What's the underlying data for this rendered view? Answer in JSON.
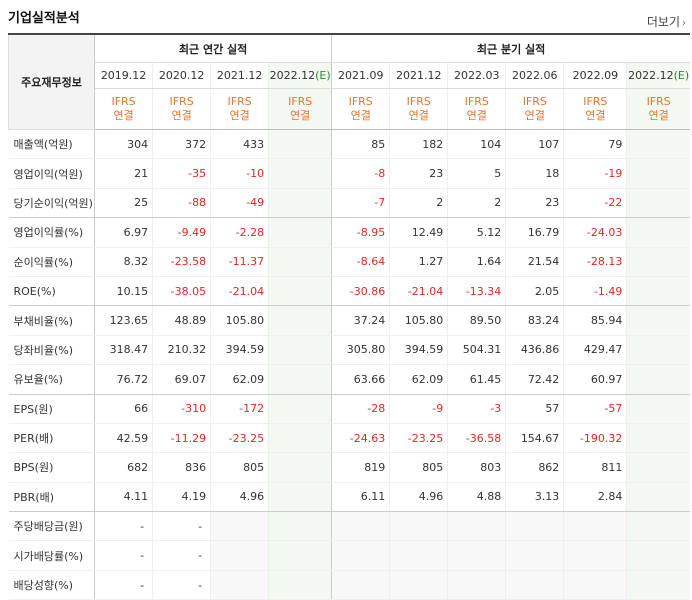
{
  "title": "기업실적분석",
  "more_label": "더보기",
  "header": {
    "corner_label": "주요재무정보",
    "annual_group": "최근 연간 실적",
    "quarter_group": "최근 분기 실적",
    "periods": [
      "2019.12",
      "2020.12",
      "2021.12",
      "2022.12(E)",
      "2021.09",
      "2021.12",
      "2022.03",
      "2022.06",
      "2022.09",
      "2022.12(E)"
    ],
    "basis_line1": "IFRS",
    "basis_line2": "연결"
  },
  "rows": [
    {
      "label": "매출액(억원)",
      "values": [
        "304",
        "372",
        "433",
        "",
        "85",
        "182",
        "104",
        "107",
        "79",
        ""
      ]
    },
    {
      "label": "영업이익(억원)",
      "values": [
        "21",
        "-35",
        "-10",
        "",
        "-8",
        "23",
        "5",
        "18",
        "-19",
        ""
      ]
    },
    {
      "label": "당기순이익(억원)",
      "values": [
        "25",
        "-88",
        "-49",
        "",
        "-7",
        "2",
        "2",
        "23",
        "-22",
        ""
      ]
    },
    {
      "label": "영업이익률(%)",
      "values": [
        "6.97",
        "-9.49",
        "-2.28",
        "",
        "-8.95",
        "12.49",
        "5.12",
        "16.79",
        "-24.03",
        ""
      ]
    },
    {
      "label": "순이익률(%)",
      "values": [
        "8.32",
        "-23.58",
        "-11.37",
        "",
        "-8.64",
        "1.27",
        "1.64",
        "21.54",
        "-28.13",
        ""
      ]
    },
    {
      "label": "ROE(%)",
      "values": [
        "10.15",
        "-38.05",
        "-21.04",
        "",
        "-30.86",
        "-21.04",
        "-13.34",
        "2.05",
        "-1.49",
        ""
      ]
    },
    {
      "label": "부채비율(%)",
      "values": [
        "123.65",
        "48.89",
        "105.80",
        "",
        "37.24",
        "105.80",
        "89.50",
        "83.24",
        "85.94",
        ""
      ]
    },
    {
      "label": "당좌비율(%)",
      "values": [
        "318.47",
        "210.32",
        "394.59",
        "",
        "305.80",
        "394.59",
        "504.31",
        "436.86",
        "429.47",
        ""
      ]
    },
    {
      "label": "유보율(%)",
      "values": [
        "76.72",
        "69.07",
        "62.09",
        "",
        "63.66",
        "62.09",
        "61.45",
        "72.42",
        "60.97",
        ""
      ]
    },
    {
      "label": "EPS(원)",
      "values": [
        "66",
        "-310",
        "-172",
        "",
        "-28",
        "-9",
        "-3",
        "57",
        "-57",
        ""
      ]
    },
    {
      "label": "PER(배)",
      "values": [
        "42.59",
        "-11.29",
        "-23.25",
        "",
        "-24.63",
        "-23.25",
        "-36.58",
        "154.67",
        "-190.32",
        ""
      ]
    },
    {
      "label": "BPS(원)",
      "values": [
        "682",
        "836",
        "805",
        "",
        "819",
        "805",
        "803",
        "862",
        "811",
        ""
      ]
    },
    {
      "label": "PBR(배)",
      "values": [
        "4.11",
        "4.19",
        "4.96",
        "",
        "6.11",
        "4.96",
        "4.88",
        "3.13",
        "2.84",
        ""
      ]
    },
    {
      "label": "주당배당금(원)",
      "values": [
        "-",
        "-",
        "",
        "",
        "",
        "",
        "",
        "",
        "",
        ""
      ]
    },
    {
      "label": "시가배당률(%)",
      "values": [
        "-",
        "-",
        "",
        "",
        "",
        "",
        "",
        "",
        "",
        ""
      ]
    },
    {
      "label": "배당성향(%)",
      "values": [
        "-",
        "-",
        "",
        "",
        "",
        "",
        "",
        "",
        "",
        ""
      ]
    }
  ],
  "colors": {
    "negative": "#e0281f",
    "basis": "#e0732d",
    "estimate": "#2f8a2f",
    "future_bg": "#f3f9f1"
  }
}
